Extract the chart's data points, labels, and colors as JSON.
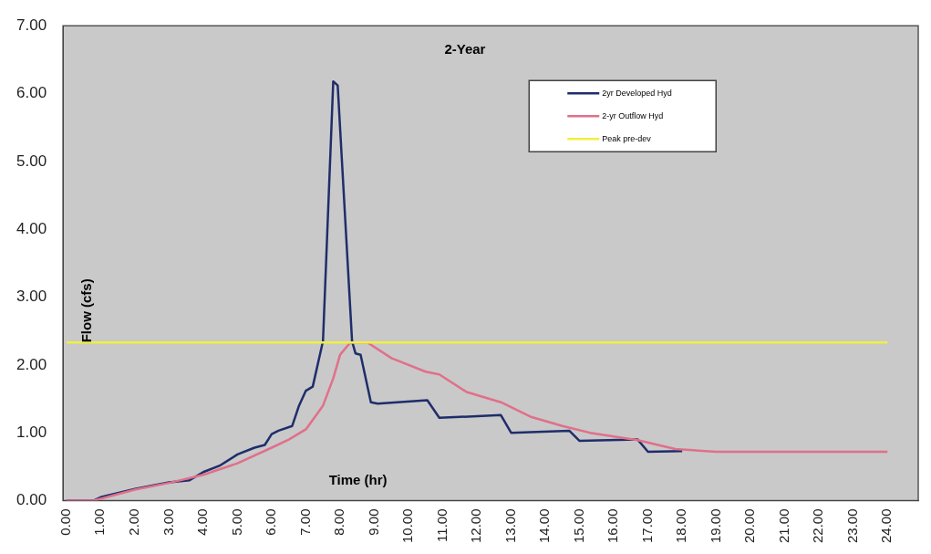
{
  "chart_data": {
    "type": "line",
    "title": "2-Year",
    "xlabel": "Time (hr)",
    "ylabel": "Flow (cfs)",
    "xlim": [
      -0.1,
      24.9
    ],
    "xticks": [
      {
        "value": 0,
        "label": "0.00"
      },
      {
        "value": 1,
        "label": "1.00"
      },
      {
        "value": 2,
        "label": "2.00"
      },
      {
        "value": 3,
        "label": "3.00"
      },
      {
        "value": 4,
        "label": "4.00"
      },
      {
        "value": 5,
        "label": "5.00"
      },
      {
        "value": 6,
        "label": "6.00"
      },
      {
        "value": 7,
        "label": "7.00"
      },
      {
        "value": 8,
        "label": "8.00"
      },
      {
        "value": 9,
        "label": "9.00"
      },
      {
        "value": 10,
        "label": "10.00"
      },
      {
        "value": 11,
        "label": "11.00"
      },
      {
        "value": 12,
        "label": "12.00"
      },
      {
        "value": 13,
        "label": "13.00"
      },
      {
        "value": 14,
        "label": "14.00"
      },
      {
        "value": 15,
        "label": "15.00"
      },
      {
        "value": 16,
        "label": "16.00"
      },
      {
        "value": 17,
        "label": "17.00"
      },
      {
        "value": 18,
        "label": "18.00"
      },
      {
        "value": 19,
        "label": "19.00"
      },
      {
        "value": 20,
        "label": "20.00"
      },
      {
        "value": 21,
        "label": "21.00"
      },
      {
        "value": 22,
        "label": "22.00"
      },
      {
        "value": 23,
        "label": "23.00"
      },
      {
        "value": 24,
        "label": "24.00"
      }
    ],
    "ylim": [
      0,
      7
    ],
    "yticks": [
      {
        "value": 0,
        "label": "0.00"
      },
      {
        "value": 1,
        "label": "1.00"
      },
      {
        "value": 2,
        "label": "2.00"
      },
      {
        "value": 3,
        "label": "3.00"
      },
      {
        "value": 4,
        "label": "4.00"
      },
      {
        "value": 5,
        "label": "5.00"
      },
      {
        "value": 6,
        "label": "6.00"
      },
      {
        "value": 7,
        "label": "7.00"
      }
    ],
    "grid": false,
    "legend": "top right",
    "marker": "none",
    "line_style": "solid",
    "series": [
      {
        "name": "2yr Developed Hyd",
        "color": "#1f2d6b",
        "x": [
          0,
          0.8,
          1,
          2,
          3,
          3.6,
          4,
          4.5,
          5,
          5.5,
          5.8,
          6,
          6.2,
          6.6,
          6.8,
          7,
          7.2,
          7.5,
          7.8,
          7.93,
          8.35,
          8.45,
          8.6,
          8.9,
          9.1,
          10.55,
          10.9,
          12.7,
          13,
          14.7,
          15,
          16.7,
          17,
          18
        ],
        "values": [
          0,
          0,
          0.05,
          0.17,
          0.27,
          0.3,
          0.42,
          0.52,
          0.68,
          0.78,
          0.82,
          0.98,
          1.03,
          1.1,
          1.4,
          1.62,
          1.68,
          2.35,
          6.18,
          6.12,
          2.35,
          2.17,
          2.15,
          1.45,
          1.43,
          1.48,
          1.22,
          1.26,
          1,
          1.03,
          0.88,
          0.9,
          0.72,
          0.73
        ]
      },
      {
        "name": "2-yr Outflow Hyd",
        "color": "#e0708a",
        "x": [
          0,
          0.8,
          2,
          3,
          4,
          5,
          6,
          6.5,
          7,
          7.5,
          7.8,
          8,
          8.3,
          8.8,
          9.5,
          10.5,
          10.9,
          11.7,
          12.7,
          13.6,
          14.5,
          15.3,
          16.7,
          17.8,
          19,
          24
        ],
        "values": [
          0,
          0,
          0.16,
          0.26,
          0.38,
          0.55,
          0.78,
          0.9,
          1.05,
          1.4,
          1.8,
          2.15,
          2.33,
          2.33,
          2.1,
          1.9,
          1.86,
          1.6,
          1.45,
          1.23,
          1.1,
          1,
          0.89,
          0.76,
          0.72,
          0.72
        ]
      },
      {
        "name": "Peak pre-dev",
        "color": "#f0f040",
        "x": [
          0,
          24
        ],
        "values": [
          2.33,
          2.33
        ]
      }
    ]
  }
}
